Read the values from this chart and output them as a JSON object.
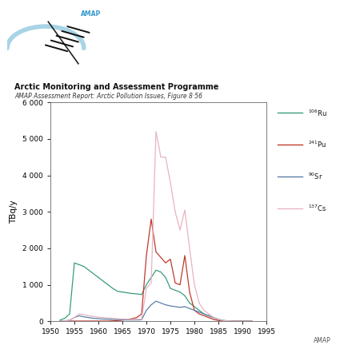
{
  "title_line1": "Arctic Monitoring and Assessment Programme",
  "title_line2": "AMAP Assessment Report: Arctic Pollution Issues, Figure 8·56",
  "ylabel": "TBq/y",
  "xlim": [
    1950,
    1995
  ],
  "ylim": [
    0,
    6000
  ],
  "yticks": [
    0,
    1000,
    2000,
    3000,
    4000,
    5000,
    6000
  ],
  "ytick_labels": [
    "0",
    "1 000",
    "2 000",
    "3 000",
    "4 000",
    "5 000",
    "6 000"
  ],
  "xticks": [
    1950,
    1955,
    1960,
    1965,
    1970,
    1975,
    1980,
    1985,
    1990,
    1995
  ],
  "Ru106": {
    "color": "#3a9b7a",
    "label_super": "106",
    "label_elem": "Ru",
    "years": [
      1952,
      1953,
      1954,
      1955,
      1956,
      1957,
      1958,
      1959,
      1960,
      1961,
      1962,
      1963,
      1964,
      1965,
      1966,
      1967,
      1968,
      1969,
      1970,
      1971,
      1972,
      1973,
      1974,
      1975,
      1976,
      1977,
      1978,
      1979,
      1980,
      1981,
      1982,
      1983,
      1984,
      1985,
      1986,
      1987,
      1988,
      1989,
      1990,
      1991,
      1992
    ],
    "values": [
      30,
      80,
      200,
      1600,
      1550,
      1500,
      1400,
      1300,
      1200,
      1100,
      1000,
      900,
      820,
      800,
      780,
      760,
      750,
      730,
      1000,
      1200,
      1400,
      1350,
      1200,
      900,
      850,
      800,
      700,
      500,
      400,
      300,
      200,
      150,
      100,
      50,
      20,
      10,
      5,
      3,
      2,
      1,
      0
    ]
  },
  "Pu241": {
    "color": "#c0392b",
    "label_super": "241",
    "label_elem": "Pu",
    "years": [
      1952,
      1953,
      1954,
      1955,
      1956,
      1957,
      1958,
      1959,
      1960,
      1961,
      1962,
      1963,
      1964,
      1965,
      1966,
      1967,
      1968,
      1969,
      1970,
      1971,
      1972,
      1973,
      1974,
      1975,
      1976,
      1977,
      1978,
      1979,
      1980,
      1981,
      1982,
      1983,
      1984,
      1985,
      1986,
      1987,
      1988,
      1989,
      1990,
      1991,
      1992
    ],
    "values": [
      5,
      5,
      5,
      5,
      5,
      5,
      5,
      5,
      5,
      5,
      5,
      10,
      20,
      30,
      50,
      70,
      100,
      200,
      1800,
      2800,
      1900,
      1750,
      1600,
      1700,
      1050,
      1000,
      1800,
      800,
      300,
      200,
      150,
      100,
      50,
      20,
      10,
      5,
      3,
      2,
      1,
      0,
      0
    ]
  },
  "Sr90": {
    "color": "#5b7fa6",
    "label_super": "90",
    "label_elem": "Sr",
    "years": [
      1952,
      1953,
      1954,
      1955,
      1956,
      1957,
      1958,
      1959,
      1960,
      1961,
      1962,
      1963,
      1964,
      1965,
      1966,
      1967,
      1968,
      1969,
      1970,
      1971,
      1972,
      1973,
      1974,
      1975,
      1976,
      1977,
      1978,
      1979,
      1980,
      1981,
      1982,
      1983,
      1984,
      1985,
      1986,
      1987,
      1988,
      1989,
      1990,
      1991,
      1992
    ],
    "values": [
      5,
      10,
      30,
      100,
      150,
      120,
      100,
      80,
      70,
      60,
      55,
      50,
      45,
      40,
      35,
      35,
      35,
      40,
      300,
      450,
      550,
      500,
      450,
      420,
      400,
      380,
      400,
      350,
      300,
      250,
      200,
      150,
      100,
      50,
      20,
      10,
      5,
      3,
      2,
      1,
      0
    ]
  },
  "Cs137": {
    "color": "#e8b4c0",
    "label_super": "137",
    "label_elem": "Cs",
    "years": [
      1952,
      1953,
      1954,
      1955,
      1956,
      1957,
      1958,
      1959,
      1960,
      1961,
      1962,
      1963,
      1964,
      1965,
      1966,
      1967,
      1968,
      1969,
      1970,
      1971,
      1972,
      1973,
      1974,
      1975,
      1976,
      1977,
      1978,
      1979,
      1980,
      1981,
      1982,
      1983,
      1984,
      1985,
      1986,
      1987,
      1988,
      1989,
      1990,
      1991,
      1992
    ],
    "values": [
      5,
      10,
      30,
      100,
      200,
      180,
      150,
      130,
      110,
      100,
      90,
      80,
      70,
      60,
      55,
      50,
      50,
      55,
      900,
      1050,
      5200,
      4500,
      4500,
      3800,
      3000,
      2500,
      3050,
      2000,
      1000,
      500,
      300,
      200,
      100,
      50,
      20,
      10,
      5,
      3,
      2,
      1,
      0
    ]
  }
}
